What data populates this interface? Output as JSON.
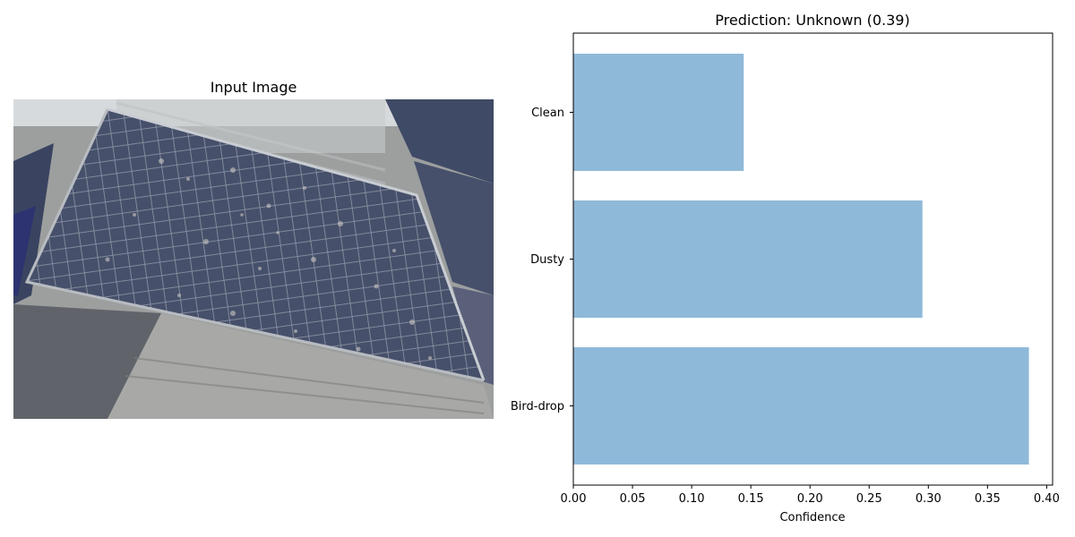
{
  "left_panel": {
    "title": "Input Image",
    "image_icon": "solar-panel-photo"
  },
  "chart_data": {
    "type": "bar",
    "orientation": "horizontal",
    "title": "Prediction: Unknown (0.39)",
    "xlabel": "Confidence",
    "ylabel": "",
    "categories": [
      "Bird-drop",
      "Dusty",
      "Clean"
    ],
    "values": [
      0.385,
      0.295,
      0.144
    ],
    "xlim": [
      0,
      0.405
    ],
    "xticks": [
      0.0,
      0.05,
      0.1,
      0.15,
      0.2,
      0.25,
      0.3,
      0.35,
      0.4
    ],
    "xtick_labels": [
      "0.00",
      "0.05",
      "0.10",
      "0.15",
      "0.20",
      "0.25",
      "0.30",
      "0.35",
      "0.40"
    ],
    "bar_color": "#8fb9d9",
    "grid": false,
    "legend": "none"
  }
}
